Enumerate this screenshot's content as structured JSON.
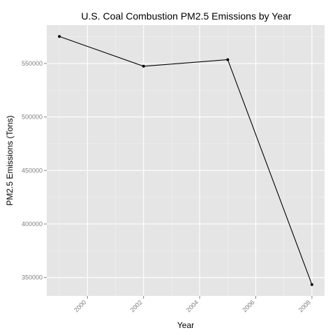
{
  "chart_data": {
    "type": "line",
    "title": "U.S. Coal Combustion PM2.5 Emissions by Year",
    "xlabel": "Year",
    "ylabel": "PM2.5 Emissions (Tons)",
    "x": [
      1999,
      2002,
      2005,
      2008
    ],
    "series": [
      {
        "values": [
          575206,
          547380,
          553549,
          343432
        ]
      }
    ],
    "xlim": [
      1998.55,
      2008.45
    ],
    "ylim": [
      332820,
      585800
    ],
    "x_ticks": [
      2000,
      2002,
      2004,
      2006,
      2008
    ],
    "y_ticks": [
      350000,
      400000,
      450000,
      500000,
      550000
    ],
    "x_tick_labels": [
      "2000",
      "2002",
      "2004",
      "2006",
      "2008"
    ],
    "y_tick_labels": [
      "350000",
      "400000",
      "450000",
      "500000",
      "550000"
    ],
    "grid": true,
    "legend": "none",
    "colors": {
      "panel_background": "#e5e5e5",
      "grid_major": "#ffffff",
      "grid_minor": "#f2f2f2",
      "line": "#000000",
      "points": "#000000",
      "tick_text": "#7f7f7f",
      "text": "#000000"
    }
  }
}
